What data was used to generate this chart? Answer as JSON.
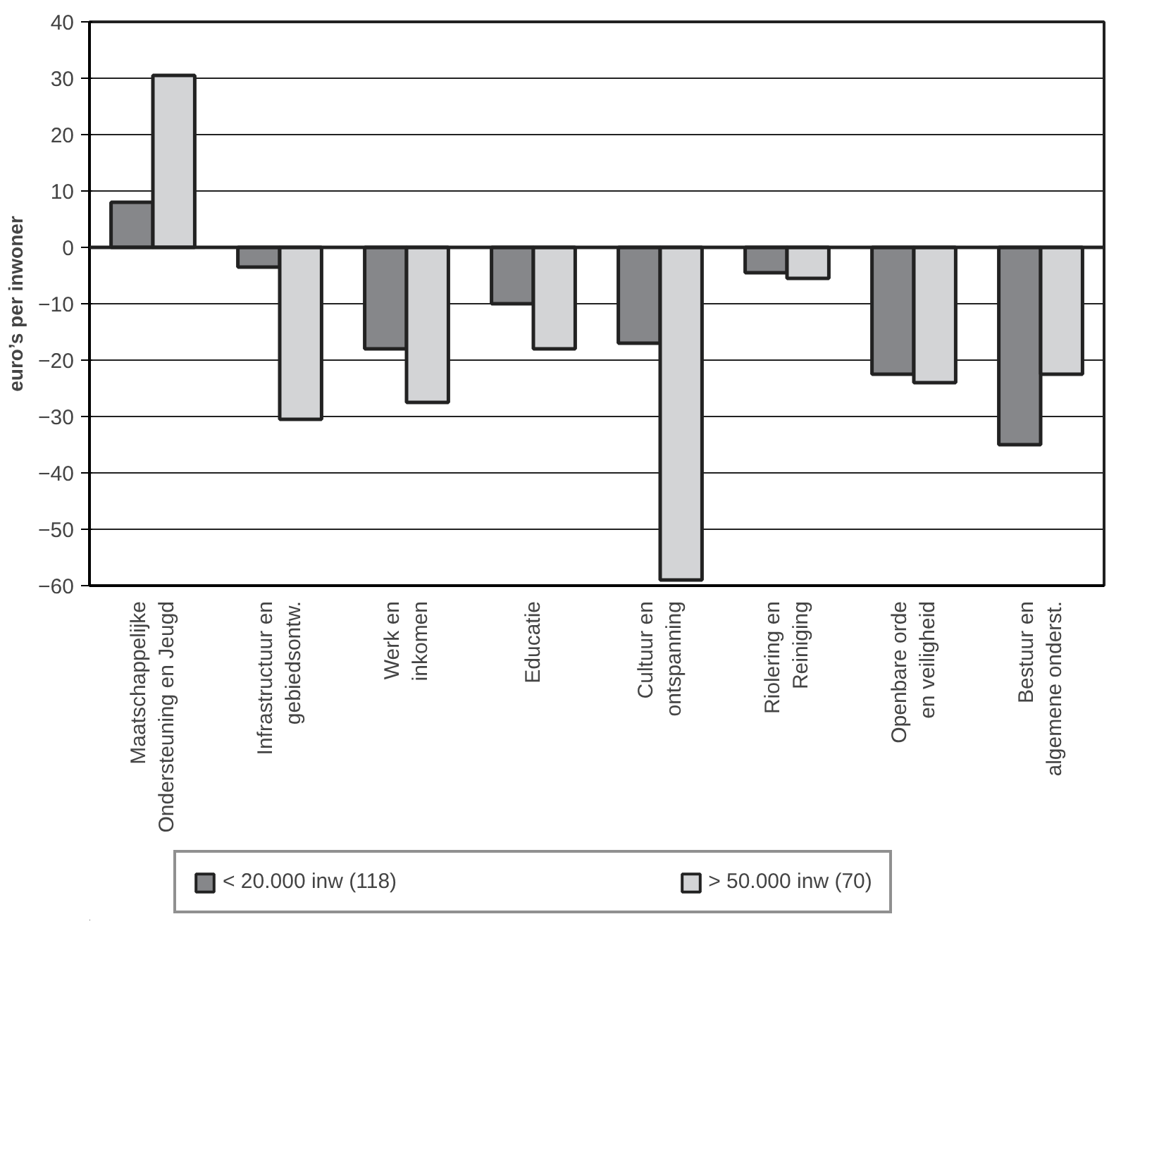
{
  "chart_data": {
    "type": "bar",
    "ylabel": "euro’s per inwoner",
    "categories": [
      "Maatschappelijke\nOndersteuning en Jeugd",
      "Infrastructuur en\ngebiedsontw.",
      "Werk en\ninkomen",
      "Educatie",
      "Cultuur en\nontspanning",
      "Riolering en\nReiniging",
      "Openbare orde\nen veiligheid",
      "Bestuur en\nalgemene onderst."
    ],
    "series": [
      {
        "name": "< 20.000 inw (118)",
        "color": "#86878a",
        "values": [
          8,
          -3.5,
          -18,
          -10,
          -17,
          -4.5,
          -22.5,
          -35
        ]
      },
      {
        "name": "> 50.000 inw (70)",
        "color": "#d3d4d6",
        "values": [
          30.5,
          -30.5,
          -27.5,
          -18,
          -59,
          -5.5,
          -24,
          -22.5
        ]
      }
    ],
    "ylim": [
      -60,
      40
    ],
    "yticks": [
      -60,
      -50,
      -40,
      -30,
      -20,
      -10,
      0,
      10,
      20,
      30,
      40
    ],
    "grid": "y",
    "legend": "bottom"
  }
}
